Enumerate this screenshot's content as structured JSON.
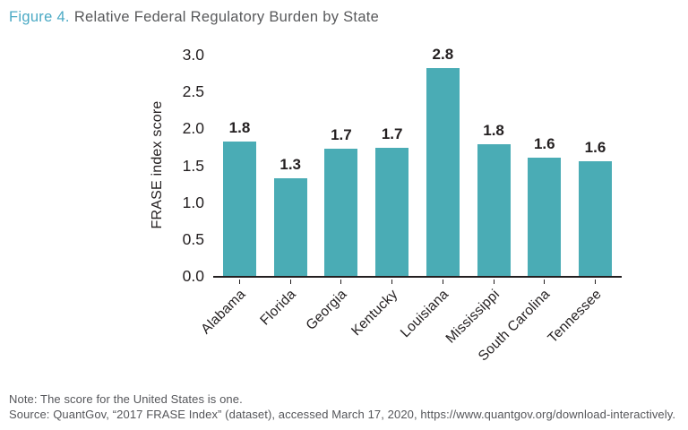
{
  "title": {
    "figure_label": "Figure 4.",
    "text": "Relative Federal Regulatory Burden by State"
  },
  "chart_data": {
    "type": "bar",
    "title": "Figure 4. Relative Federal Regulatory Burden by State",
    "categories": [
      "Alabama",
      "Florida",
      "Georgia",
      "Kentucky",
      "Louisiana",
      "Mississippi",
      "South Carolina",
      "Tennessee"
    ],
    "values": [
      1.82,
      1.33,
      1.73,
      1.74,
      2.82,
      1.79,
      1.6,
      1.56
    ],
    "value_labels": [
      "1.8",
      "1.3",
      "1.7",
      "1.7",
      "2.8",
      "1.8",
      "1.6",
      "1.6"
    ],
    "xlabel": "",
    "ylabel": "FRASE index score",
    "ylim": [
      0,
      3.0
    ],
    "yticks": [
      "0.0",
      "0.5",
      "1.0",
      "1.5",
      "2.0",
      "2.5",
      "3.0"
    ],
    "bar_color": "#4aacb5",
    "grid": false,
    "legend": "none"
  },
  "notes": {
    "note": "Note: The score for the United States is one.",
    "source": "Source: QuantGov, “2017 FRASE Index” (dataset), accessed March 17, 2020, https://www.quantgov.org/download-interactively."
  },
  "colors": {
    "bar_teal": "#4aacb5",
    "title_accent_teal": "#4aa9c4",
    "title_gray": "#58595b",
    "chart_text": "#231f20",
    "note_gray": "#55565a"
  }
}
